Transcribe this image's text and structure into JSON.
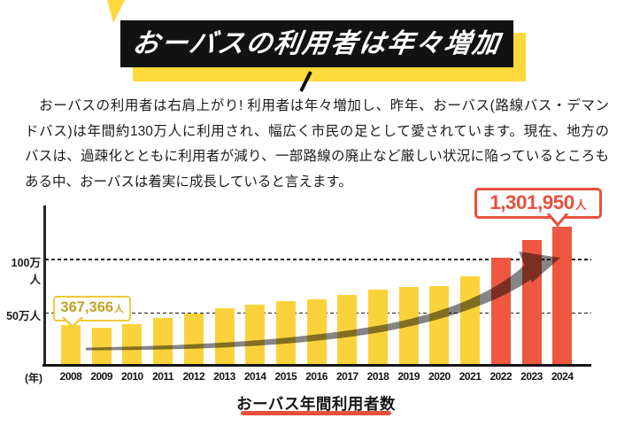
{
  "header": {
    "title": "おーバスの利用者は年々増加",
    "colors": {
      "box": "#121212",
      "text": "#FFFFFF",
      "shadow": "#FFD93B"
    }
  },
  "intro": {
    "lines": [
      "　おーバスの利用者は右肩上がり! 利用者は年々増加し、昨年、おーバス(路線バス・デマン",
      "ドバス)は年間約130万人に利用され、幅広く市民の足として愛されています。現在、地方の",
      "バスは、過疎化とともに利用者が減り、一部路線の廃止など厳しい状況に陥っているところも",
      "ある中、おーバスは着実に成長していると言えます。"
    ]
  },
  "chart": {
    "caption": "おーバス年間利用者数",
    "caption_underline_color": "#E8503C",
    "axis_unit_label": "(年)",
    "y_ticks": [
      "100万人",
      "50万人"
    ],
    "callout_first": {
      "value": "367,366",
      "suffix": "人",
      "border_color": "#EFC93B",
      "text_color": "#BFA227",
      "points_to_year": "2008"
    },
    "callout_last": {
      "value": "1,301,950",
      "suffix": "人",
      "border_color": "#E8503C",
      "text_color": "#E8503C",
      "points_to_year": "2024"
    }
  },
  "chart_data": {
    "type": "bar",
    "title": "おーバス年間利用者数",
    "categories": [
      "2008",
      "2009",
      "2010",
      "2011",
      "2012",
      "2013",
      "2014",
      "2015",
      "2016",
      "2017",
      "2018",
      "2019",
      "2020",
      "2021",
      "2022",
      "2023",
      "2024"
    ],
    "values": [
      36.7,
      34.5,
      37.8,
      43.7,
      47.9,
      52.9,
      56.3,
      59.7,
      61.3,
      65.5,
      70.6,
      73.1,
      73.9,
      83.2,
      100.8,
      117.6,
      130.2
    ],
    "unit": "万人",
    "xlabel": "年",
    "ylabel": "",
    "ylim": [
      0,
      150
    ],
    "y_axis_ticks": [
      {
        "label": "50万人",
        "value": 50
      },
      {
        "label": "100万人",
        "value": 100
      }
    ],
    "grid": "horizontal-dashed",
    "legend": "none",
    "annotations": [
      {
        "year": "2008",
        "label": "367,366人"
      },
      {
        "year": "2024",
        "label": "1,301,950人"
      }
    ],
    "highlight_from_year": "2022",
    "colors": {
      "bar_default": "#FAD33C",
      "bar_highlight": "#EE5740",
      "arrow": "#6F6F6F"
    }
  }
}
